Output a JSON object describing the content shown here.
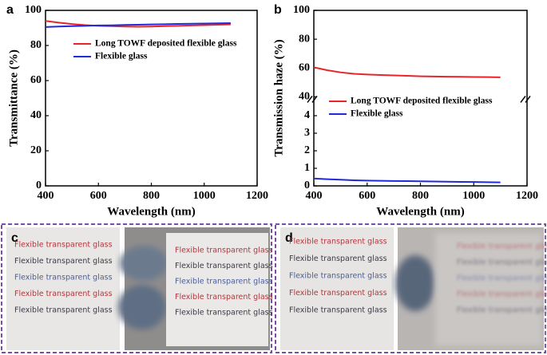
{
  "chart_data": [
    {
      "type": "line",
      "panel_label": "a",
      "xlabel": "Wavelength (nm)",
      "ylabel": "Transmittance (%)",
      "x": [
        400,
        450,
        500,
        550,
        600,
        650,
        700,
        750,
        800,
        850,
        900,
        950,
        1000,
        1050,
        1100
      ],
      "xlim": [
        400,
        1200
      ],
      "xticks": [
        400,
        600,
        800,
        1000,
        1200
      ],
      "ylim": [
        0,
        100
      ],
      "yticks": [
        0,
        20,
        40,
        60,
        80,
        100
      ],
      "series": [
        {
          "name": "Long TOWF deposited flexible glass",
          "color": "#e8262a",
          "values": [
            94,
            93,
            92.2,
            91.6,
            91.2,
            91,
            90.8,
            90.7,
            90.8,
            91,
            91.2,
            91.4,
            91.6,
            91.8,
            92
          ]
        },
        {
          "name": "Flexible glass",
          "color": "#1f2bd6",
          "values": [
            90.5,
            90.8,
            91,
            91.2,
            91.4,
            91.5,
            91.7,
            91.8,
            92,
            92.1,
            92.3,
            92.4,
            92.5,
            92.6,
            92.7
          ]
        }
      ]
    },
    {
      "type": "line",
      "panel_label": "b",
      "xlabel": "Wavelength (nm)",
      "ylabel": "Transmission haze (%)",
      "x": [
        400,
        450,
        500,
        550,
        600,
        650,
        700,
        750,
        800,
        850,
        900,
        950,
        1000,
        1050,
        1100
      ],
      "xlim": [
        400,
        1200
      ],
      "xticks": [
        400,
        600,
        800,
        1000,
        1200
      ],
      "ylim": [
        0,
        100
      ],
      "ybreak": [
        4.8,
        40
      ],
      "yticks": [
        0,
        1,
        2,
        3,
        4,
        40,
        60,
        80,
        100
      ],
      "series": [
        {
          "name": "Long TOWF deposited flexible glass",
          "color": "#e8262a",
          "values": [
            60.5,
            58.5,
            57,
            56,
            55.5,
            55.2,
            54.9,
            54.6,
            54.3,
            54.1,
            54,
            53.9,
            53.8,
            53.7,
            53.6
          ]
        },
        {
          "name": "Flexible glass",
          "color": "#1f2bd6",
          "values": [
            0.42,
            0.38,
            0.35,
            0.32,
            0.3,
            0.29,
            0.28,
            0.27,
            0.26,
            0.25,
            0.24,
            0.23,
            0.22,
            0.21,
            0.2
          ]
        }
      ]
    }
  ],
  "panels": [
    {
      "label": "c",
      "left": [
        "Flexible transparent glass",
        "Flexible transparent glass",
        "Flexible transparent glass",
        "Flexible transparent glass",
        "Flexible transparent glass"
      ],
      "right": [
        "Flexible transparent glass",
        "Flexible transparent glass",
        "Flexible transparent glass",
        "Flexible transparent glass",
        "Flexible transparent glass"
      ]
    },
    {
      "label": "d",
      "left": [
        "Flexible transparent glass",
        "Flexible transparent glass",
        "Flexible transparent glass",
        "Flexible transparent glass",
        "Flexible transparent glass"
      ],
      "right": [
        "Flexible transparent glass",
        "Flexible transparent glass",
        "Flexible transparent glass",
        "Flexible transparent glass",
        "Flexible transparent glass"
      ]
    }
  ],
  "line_colors": [
    "#b0383f",
    "#3a3a48",
    "#4a5f9a",
    "#b0383f",
    "#3a3a48"
  ]
}
